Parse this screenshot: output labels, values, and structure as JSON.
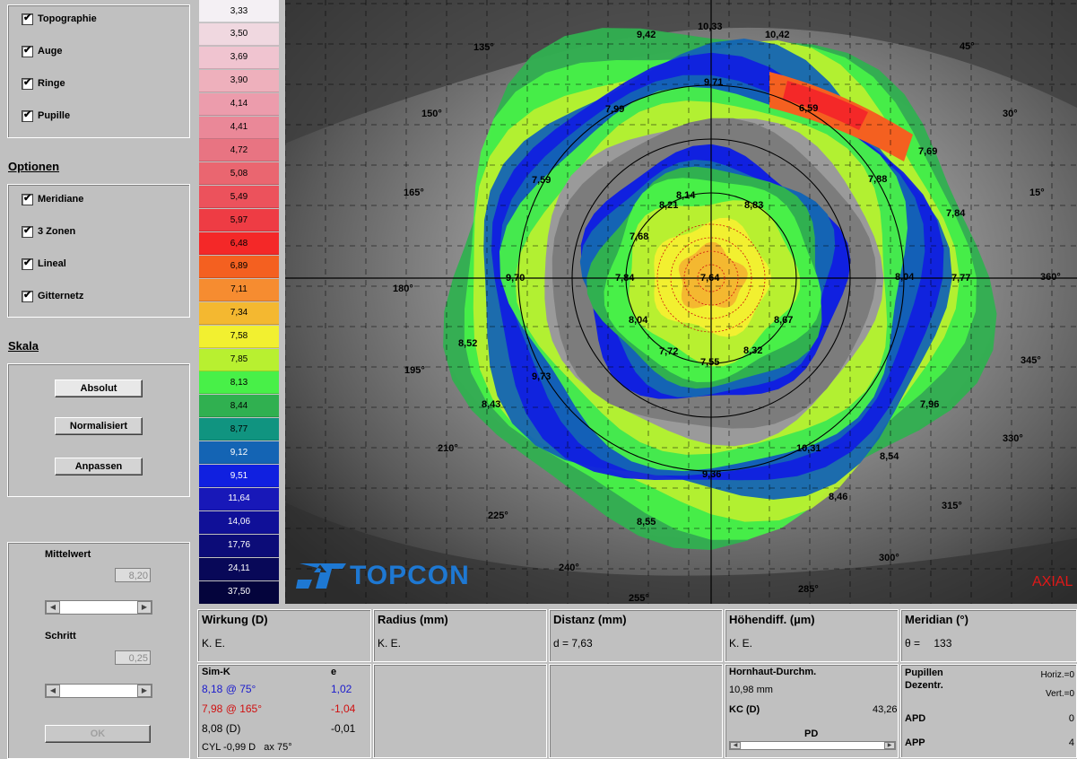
{
  "display": {
    "items": [
      {
        "label": "Topographie",
        "checked": true
      },
      {
        "label": "Auge",
        "checked": true
      },
      {
        "label": "Ringe",
        "checked": true
      },
      {
        "label": "Pupille",
        "checked": true
      }
    ]
  },
  "options": {
    "title": "Optionen",
    "items": [
      {
        "label": "Meridiane",
        "checked": true
      },
      {
        "label": "3 Zonen",
        "checked": true
      },
      {
        "label": "Lineal",
        "checked": true
      },
      {
        "label": "Gitternetz",
        "checked": true
      }
    ]
  },
  "skala": {
    "title": "Skala",
    "absolut": "Absolut",
    "normalisiert": "Normalisiert",
    "anpassen": "Anpassen"
  },
  "settings": {
    "mittelwert_label": "Mittelwert",
    "mittelwert_value": "8,20",
    "schritt_label": "Schritt",
    "schritt_value": "0,25",
    "ok_label": "OK"
  },
  "color_scale": [
    {
      "value": "3,33",
      "color": "#f4f0f4"
    },
    {
      "value": "3,50",
      "color": "#f0d8e0"
    },
    {
      "value": "3,69",
      "color": "#f0c4d0"
    },
    {
      "value": "3,90",
      "color": "#eeb0bc"
    },
    {
      "value": "4,14",
      "color": "#ec9cac"
    },
    {
      "value": "4,41",
      "color": "#ea8898"
    },
    {
      "value": "4,72",
      "color": "#e87482"
    },
    {
      "value": "5,08",
      "color": "#ea6670"
    },
    {
      "value": "5,49",
      "color": "#ec525c"
    },
    {
      "value": "5,97",
      "color": "#ee3c44"
    },
    {
      "value": "6,48",
      "color": "#f42828"
    },
    {
      "value": "6,89",
      "color": "#f46020"
    },
    {
      "value": "7,11",
      "color": "#f68c30"
    },
    {
      "value": "7,34",
      "color": "#f4b830"
    },
    {
      "value": "7,58",
      "color": "#f2f030"
    },
    {
      "value": "7,85",
      "color": "#b8f030"
    },
    {
      "value": "8,13",
      "color": "#48f048"
    },
    {
      "value": "8,44",
      "color": "#30b050"
    },
    {
      "value": "8,77",
      "color": "#109480"
    },
    {
      "value": "9,12",
      "color": "#1464b4"
    },
    {
      "value": "9,51",
      "color": "#1020e0"
    },
    {
      "value": "11,64",
      "color": "#1818b8"
    },
    {
      "value": "14,06",
      "color": "#101098"
    },
    {
      "value": "17,76",
      "color": "#0c0c78"
    },
    {
      "value": "24,11",
      "color": "#080858"
    },
    {
      "value": "37,50",
      "color": "#04043c"
    }
  ],
  "map": {
    "brand": "TOPCON",
    "mode_label": "AXIAL",
    "angle_labels": [
      "45°",
      "30°",
      "15°",
      "360°",
      "345°",
      "330°",
      "315°",
      "300°",
      "285°",
      "255°",
      "240°",
      "225°",
      "210°",
      "195°",
      "180°",
      "165°",
      "150°",
      "135°"
    ],
    "values": [
      "9,42",
      "10,33",
      "10,42",
      "9,71",
      "7,99",
      "6,59",
      "7,69",
      "7,88",
      "7,84",
      "7,59",
      "8,14",
      "8,21",
      "8,83",
      "7,68",
      "9,70",
      "7,84",
      "7,64",
      "8,04",
      "8,67",
      "8,52",
      "7,72",
      "8,32",
      "7,55",
      "9,73",
      "8,04",
      "7,77",
      "8,43",
      "7,96",
      "10,31",
      "8,54",
      "9,36",
      "8,46",
      "8,55"
    ]
  },
  "panels": {
    "wirkung": {
      "title": "Wirkung (D)",
      "value": "K. E."
    },
    "radius": {
      "title": "Radius (mm)",
      "value": "K. E."
    },
    "distanz": {
      "title": "Distanz (mm)",
      "value": "d = 7,63"
    },
    "hoehendiff": {
      "title": "Höhendiff. (µm)",
      "value": "K. E."
    },
    "meridian": {
      "title": "Meridian (°)",
      "value_prefix": "θ =",
      "value": "133"
    }
  },
  "simk": {
    "header": "Sim-K",
    "e_header": "e",
    "row1": {
      "k": "8,18  @ 75°",
      "e": "1,02",
      "color": "#1a1acc"
    },
    "row2": {
      "k": "7,98  @ 165°",
      "e": "-1,04",
      "color": "#d01010"
    },
    "row3": {
      "k": "8,08 (D)",
      "e": "-0,01",
      "color": "#000000"
    },
    "cyl": "CYL -0,99 D   ax 75°"
  },
  "hornhaut": {
    "title": "Hornhaut-Durchm.",
    "value": "10,98 mm",
    "kc_label": "KC (D)",
    "kc_value": "43,26",
    "pd_label": "PD"
  },
  "pupillen": {
    "title1": "Pupillen",
    "title2": "Dezentr.",
    "horiz": "Horiz.=0",
    "vert": "Vert.=0",
    "apd_label": "APD",
    "apd_value": "0",
    "app_label": "APP",
    "app_value": "4"
  }
}
